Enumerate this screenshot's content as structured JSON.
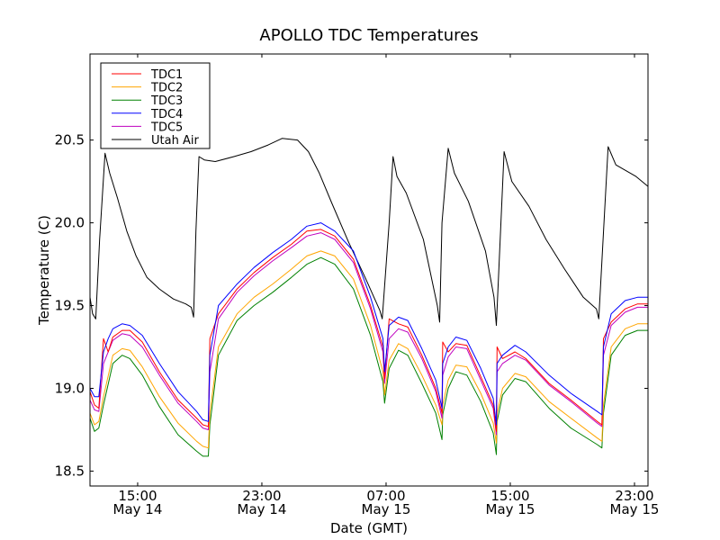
{
  "chart_data": {
    "type": "line",
    "title": "APOLLO TDC Temperatures",
    "xlabel": "Date (GMT)",
    "ylabel": "Temperature (C)",
    "x_units": "hours since 00:00 May 14 (GMT)",
    "xlim": [
      11.93,
      47.87
    ],
    "ylim": [
      18.41,
      21.02
    ],
    "grid": false,
    "legend_position": "top-left",
    "x_ticks": [
      {
        "value": 15,
        "label_time": "15:00",
        "label_date": "May 14"
      },
      {
        "value": 23,
        "label_time": "23:00",
        "label_date": "May 14"
      },
      {
        "value": 31,
        "label_time": "07:00",
        "label_date": "May 15"
      },
      {
        "value": 39,
        "label_time": "15:00",
        "label_date": "May 15"
      },
      {
        "value": 47,
        "label_time": "23:00",
        "label_date": "May 15"
      }
    ],
    "y_ticks": [
      {
        "value": 18.5,
        "label": "18.5"
      },
      {
        "value": 19.0,
        "label": "19.0"
      },
      {
        "value": 19.5,
        "label": "19.5"
      },
      {
        "value": 20.0,
        "label": "20.0"
      },
      {
        "value": 20.5,
        "label": "20.5"
      }
    ],
    "series": [
      {
        "name": "TDC1",
        "color": "#ff0000",
        "x": [
          11.93,
          12.22,
          12.5,
          12.8,
          13.1,
          13.4,
          14.0,
          14.5,
          15.3,
          16.4,
          17.6,
          18.8,
          19.2,
          19.55,
          19.65,
          20.2,
          21.4,
          22.5,
          23.7,
          24.9,
          25.9,
          26.8,
          27.7,
          28.9,
          30.0,
          30.8,
          30.9,
          31.2,
          31.8,
          32.4,
          33.3,
          34.2,
          34.6,
          34.65,
          35.0,
          35.5,
          36.2,
          37.1,
          37.9,
          38.1,
          38.15,
          38.5,
          39.3,
          40.0,
          41.5,
          42.9,
          44.6,
          44.9,
          45.0,
          45.5,
          46.4,
          47.2,
          47.87
        ],
        "y": [
          18.98,
          18.9,
          18.88,
          19.3,
          19.22,
          19.31,
          19.35,
          19.35,
          19.28,
          19.1,
          18.93,
          18.82,
          18.78,
          18.77,
          19.3,
          19.45,
          19.6,
          19.7,
          19.79,
          19.87,
          19.95,
          19.96,
          19.92,
          19.78,
          19.5,
          19.25,
          19.06,
          19.42,
          19.39,
          19.37,
          19.2,
          19.0,
          18.85,
          19.28,
          19.22,
          19.27,
          19.26,
          19.07,
          18.9,
          18.74,
          19.25,
          19.18,
          19.22,
          19.18,
          19.03,
          18.93,
          18.8,
          18.78,
          19.3,
          19.4,
          19.48,
          19.51,
          19.51
        ]
      },
      {
        "name": "TDC2",
        "color": "#ffa500",
        "x": [
          11.93,
          12.22,
          12.5,
          12.8,
          13.4,
          14.0,
          14.5,
          15.3,
          16.4,
          17.6,
          18.8,
          19.2,
          19.55,
          19.65,
          20.2,
          21.4,
          22.5,
          23.7,
          24.9,
          25.9,
          26.8,
          27.7,
          28.9,
          30.0,
          30.8,
          30.9,
          31.2,
          31.8,
          32.4,
          33.3,
          34.2,
          34.6,
          34.65,
          35.0,
          35.5,
          36.2,
          37.1,
          37.9,
          38.1,
          38.15,
          38.5,
          39.3,
          40.0,
          41.5,
          42.9,
          44.6,
          44.9,
          45.0,
          45.5,
          46.4,
          47.2,
          47.87
        ],
        "y": [
          18.85,
          18.78,
          18.8,
          18.95,
          19.2,
          19.24,
          19.23,
          19.13,
          18.95,
          18.79,
          18.68,
          18.65,
          18.64,
          18.85,
          19.25,
          19.45,
          19.55,
          19.63,
          19.72,
          19.8,
          19.83,
          19.8,
          19.66,
          19.38,
          19.1,
          18.96,
          19.17,
          19.27,
          19.24,
          19.08,
          18.9,
          18.78,
          18.9,
          19.05,
          19.14,
          19.13,
          18.97,
          18.79,
          18.67,
          18.85,
          19.0,
          19.09,
          19.07,
          18.92,
          18.82,
          18.7,
          18.68,
          18.9,
          19.25,
          19.36,
          19.39,
          19.39
        ]
      },
      {
        "name": "TDC3",
        "color": "#008000",
        "x": [
          11.93,
          12.22,
          12.5,
          12.8,
          13.4,
          14.0,
          14.5,
          15.3,
          16.4,
          17.6,
          18.8,
          19.2,
          19.55,
          19.65,
          20.2,
          21.4,
          22.5,
          23.7,
          24.9,
          25.9,
          26.8,
          27.7,
          28.9,
          30.0,
          30.8,
          30.9,
          31.2,
          31.8,
          32.4,
          33.3,
          34.2,
          34.6,
          34.65,
          35.0,
          35.5,
          36.2,
          37.1,
          37.9,
          38.1,
          38.15,
          38.5,
          39.3,
          40.0,
          41.5,
          42.9,
          44.6,
          44.9,
          45.0,
          45.5,
          46.4,
          47.2,
          47.87
        ],
        "y": [
          18.82,
          18.74,
          18.76,
          18.9,
          19.15,
          19.2,
          19.18,
          19.08,
          18.89,
          18.72,
          18.62,
          18.59,
          18.59,
          18.78,
          19.2,
          19.41,
          19.5,
          19.58,
          19.67,
          19.75,
          19.79,
          19.75,
          19.6,
          19.32,
          19.04,
          18.91,
          19.12,
          19.23,
          19.2,
          19.03,
          18.85,
          18.69,
          18.84,
          19.0,
          19.1,
          19.08,
          18.92,
          18.73,
          18.6,
          18.8,
          18.96,
          19.06,
          19.04,
          18.88,
          18.76,
          18.66,
          18.64,
          18.85,
          19.2,
          19.32,
          19.35,
          19.35
        ]
      },
      {
        "name": "TDC4",
        "color": "#0000ff",
        "x": [
          11.93,
          12.22,
          12.5,
          12.8,
          13.1,
          13.4,
          14.0,
          14.5,
          15.3,
          16.4,
          17.6,
          18.8,
          19.2,
          19.55,
          19.65,
          20.2,
          21.4,
          22.5,
          23.7,
          24.9,
          25.9,
          26.8,
          27.7,
          28.9,
          30.0,
          30.8,
          30.9,
          31.2,
          31.8,
          32.4,
          33.3,
          34.2,
          34.6,
          34.65,
          35.0,
          35.5,
          36.2,
          37.1,
          37.9,
          38.1,
          38.15,
          38.5,
          39.3,
          40.0,
          41.5,
          42.9,
          44.6,
          44.9,
          45.0,
          45.5,
          46.4,
          47.2,
          47.87
        ],
        "y": [
          19.0,
          18.95,
          18.95,
          19.22,
          19.3,
          19.36,
          19.39,
          19.38,
          19.32,
          19.15,
          18.98,
          18.86,
          18.81,
          18.8,
          19.2,
          19.5,
          19.63,
          19.73,
          19.82,
          19.9,
          19.98,
          20.0,
          19.95,
          19.83,
          19.55,
          19.3,
          19.1,
          19.38,
          19.43,
          19.41,
          19.24,
          19.05,
          18.88,
          19.15,
          19.25,
          19.31,
          19.29,
          19.12,
          18.94,
          18.78,
          19.15,
          19.2,
          19.26,
          19.22,
          19.08,
          18.97,
          18.86,
          18.84,
          19.25,
          19.45,
          19.53,
          19.55,
          19.55
        ]
      },
      {
        "name": "TDC5",
        "color": "#bf00bf",
        "x": [
          11.93,
          12.22,
          12.5,
          12.8,
          13.4,
          14.0,
          14.5,
          15.3,
          16.4,
          17.6,
          18.8,
          19.2,
          19.55,
          19.65,
          20.2,
          21.4,
          22.5,
          23.7,
          24.9,
          25.9,
          26.8,
          27.7,
          28.9,
          30.0,
          30.8,
          30.9,
          31.2,
          31.8,
          32.4,
          33.3,
          34.2,
          34.6,
          34.65,
          35.0,
          35.5,
          36.2,
          37.1,
          37.9,
          38.1,
          38.15,
          38.5,
          39.3,
          40.0,
          41.5,
          42.9,
          44.6,
          44.9,
          45.0,
          45.5,
          46.4,
          47.2,
          47.87
        ],
        "y": [
          18.93,
          18.87,
          18.86,
          19.15,
          19.29,
          19.33,
          19.32,
          19.25,
          19.08,
          18.91,
          18.8,
          18.76,
          18.75,
          19.1,
          19.42,
          19.58,
          19.68,
          19.77,
          19.85,
          19.92,
          19.94,
          19.9,
          19.76,
          19.48,
          19.22,
          19.03,
          19.3,
          19.36,
          19.34,
          19.18,
          18.98,
          18.82,
          19.08,
          19.19,
          19.25,
          19.24,
          19.05,
          18.88,
          18.72,
          19.1,
          19.15,
          19.2,
          19.17,
          19.02,
          18.92,
          18.79,
          18.77,
          19.2,
          19.38,
          19.46,
          19.49,
          19.49
        ]
      },
      {
        "name": "Utah Air",
        "color": "#000000",
        "x": [
          11.93,
          12.1,
          12.3,
          12.55,
          12.9,
          13.2,
          13.7,
          14.3,
          14.9,
          15.6,
          16.4,
          17.3,
          18.1,
          18.45,
          18.6,
          18.75,
          18.95,
          19.3,
          20.0,
          21.2,
          22.3,
          23.4,
          24.3,
          25.3,
          26.0,
          26.7,
          27.5,
          28.6,
          29.7,
          30.6,
          30.75,
          31.2,
          31.45,
          31.7,
          32.3,
          33.4,
          34.3,
          34.45,
          34.6,
          35.0,
          35.4,
          36.3,
          37.4,
          37.95,
          38.1,
          38.6,
          39.1,
          40.2,
          41.3,
          42.5,
          43.7,
          44.55,
          44.7,
          45.3,
          45.8,
          47.1,
          47.87
        ],
        "y": [
          19.55,
          19.45,
          19.42,
          19.9,
          20.42,
          20.3,
          20.15,
          19.95,
          19.8,
          19.67,
          19.6,
          19.54,
          19.51,
          19.49,
          19.43,
          19.95,
          20.4,
          20.38,
          20.37,
          20.4,
          20.43,
          20.47,
          20.51,
          20.5,
          20.43,
          20.3,
          20.12,
          19.88,
          19.66,
          19.47,
          19.42,
          20.0,
          20.4,
          20.28,
          20.18,
          19.9,
          19.5,
          19.4,
          20.0,
          20.45,
          20.3,
          20.13,
          19.83,
          19.55,
          19.38,
          20.43,
          20.25,
          20.1,
          19.9,
          19.72,
          19.55,
          19.48,
          19.42,
          20.46,
          20.35,
          20.28,
          20.22
        ]
      }
    ]
  }
}
